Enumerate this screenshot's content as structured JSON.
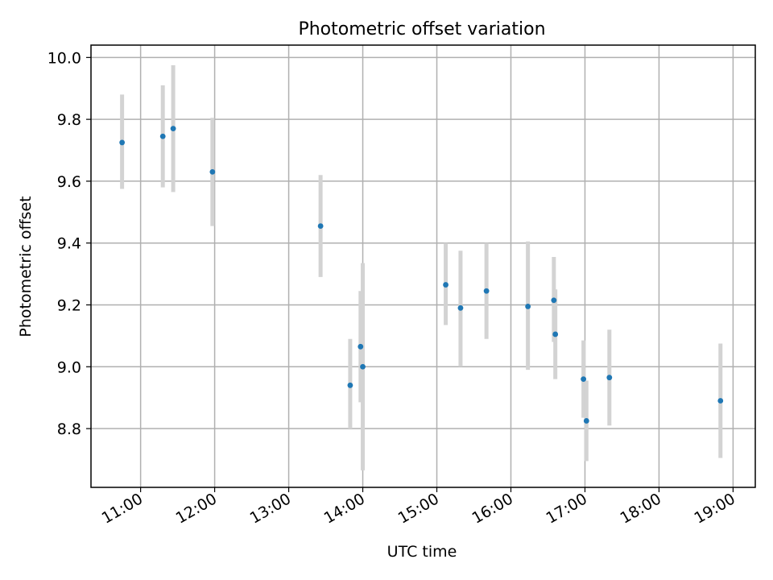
{
  "chart_data": {
    "type": "scatter",
    "title": "Photometric offset variation",
    "xlabel": "UTC time",
    "ylabel": "Photometric offset",
    "grid": true,
    "xlim": [
      10.33,
      19.3
    ],
    "ylim": [
      8.61,
      10.04
    ],
    "x_ticks": [
      {
        "value": 11,
        "label": "11:00"
      },
      {
        "value": 12,
        "label": "12:00"
      },
      {
        "value": 13,
        "label": "13:00"
      },
      {
        "value": 14,
        "label": "14:00"
      },
      {
        "value": 15,
        "label": "15:00"
      },
      {
        "value": 16,
        "label": "16:00"
      },
      {
        "value": 17,
        "label": "17:00"
      },
      {
        "value": 18,
        "label": "18:00"
      },
      {
        "value": 19,
        "label": "19:00"
      }
    ],
    "y_ticks": [
      {
        "value": 8.8,
        "label": "8.8"
      },
      {
        "value": 9.0,
        "label": "9.0"
      },
      {
        "value": 9.2,
        "label": "9.2"
      },
      {
        "value": 9.4,
        "label": "9.4"
      },
      {
        "value": 9.6,
        "label": "9.6"
      },
      {
        "value": 9.8,
        "label": "9.8"
      },
      {
        "value": 10.0,
        "label": "10.0"
      }
    ],
    "marker_color": "#1f77b4",
    "errorbar_color": "#d3d3d3",
    "points": [
      {
        "x": 10.75,
        "y": 9.725,
        "err_low": 9.575,
        "err_high": 9.88
      },
      {
        "x": 11.3,
        "y": 9.745,
        "err_low": 9.58,
        "err_high": 9.91
      },
      {
        "x": 11.44,
        "y": 9.77,
        "err_low": 9.565,
        "err_high": 9.975
      },
      {
        "x": 11.97,
        "y": 9.63,
        "err_low": 9.455,
        "err_high": 9.805
      },
      {
        "x": 13.43,
        "y": 9.455,
        "err_low": 9.29,
        "err_high": 9.62
      },
      {
        "x": 13.83,
        "y": 8.94,
        "err_low": 8.8,
        "err_high": 9.09
      },
      {
        "x": 13.97,
        "y": 9.065,
        "err_low": 8.885,
        "err_high": 9.245
      },
      {
        "x": 14.0,
        "y": 9.0,
        "err_low": 8.665,
        "err_high": 9.335
      },
      {
        "x": 15.12,
        "y": 9.265,
        "err_low": 9.135,
        "err_high": 9.4
      },
      {
        "x": 15.32,
        "y": 9.19,
        "err_low": 9.0,
        "err_high": 9.375
      },
      {
        "x": 15.67,
        "y": 9.245,
        "err_low": 9.09,
        "err_high": 9.4
      },
      {
        "x": 16.23,
        "y": 9.195,
        "err_low": 8.99,
        "err_high": 9.405
      },
      {
        "x": 16.58,
        "y": 9.215,
        "err_low": 9.08,
        "err_high": 9.355
      },
      {
        "x": 16.6,
        "y": 9.105,
        "err_low": 8.96,
        "err_high": 9.25
      },
      {
        "x": 16.98,
        "y": 8.96,
        "err_low": 8.835,
        "err_high": 9.085
      },
      {
        "x": 17.02,
        "y": 8.825,
        "err_low": 8.695,
        "err_high": 8.955
      },
      {
        "x": 17.33,
        "y": 8.965,
        "err_low": 8.81,
        "err_high": 9.12
      },
      {
        "x": 18.83,
        "y": 8.89,
        "err_low": 8.705,
        "err_high": 9.075
      }
    ]
  }
}
